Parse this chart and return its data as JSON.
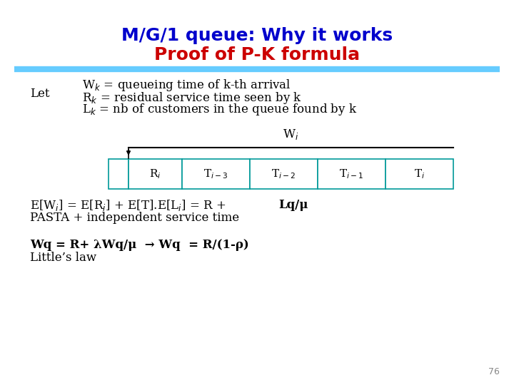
{
  "title_line1": "M/G/1 queue: Why it works",
  "title_line2": "Proof of P-K formula",
  "title_line1_color": "#0000CC",
  "title_line2_color": "#CC0000",
  "title_fontsize": 18,
  "separator_color": "#66CCFF",
  "background_color": "#FFFFFF",
  "let_text": "Let",
  "def_line1": "W$_k$ = queueing time of k-th arrival",
  "def_line2": "R$_k$ = residual service time seen by k",
  "def_line3": "L$_k$ = nb of customers in the queue found by k",
  "box_labels": [
    "R$_i$",
    "T$_{i-3}$",
    "T$_{i-2}$",
    "T$_{i-1}$",
    "T$_i$"
  ],
  "wi_label": "W$_i$",
  "eq_line2": "PASTA + independent service time",
  "wq_line1": "Wq = R+ λWq/μ  → Wq  = R/(1-ρ)",
  "wq_line2": "Little’s law",
  "page_number": "76",
  "box_facecolor": "#FFFFFF",
  "box_edgecolor": "#009999"
}
